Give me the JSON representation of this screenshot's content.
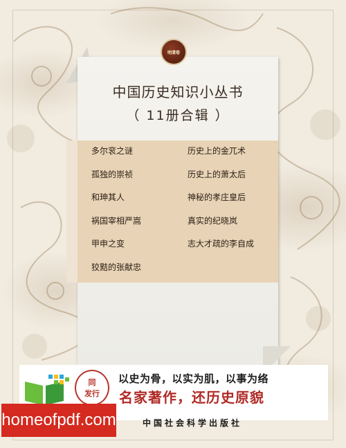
{
  "seal": {
    "text": "明清卷"
  },
  "title": {
    "main": "中国历史知识小丛书",
    "sub": "（ 11册合辑 ）"
  },
  "books_left": [
    "多尔衮之谜",
    "孤独的崇祯",
    "和珅其人",
    "祸国宰相严嵩",
    "甲申之变",
    "狡黠的张献忠"
  ],
  "books_right": [
    "历史上的金兀术",
    "历史上的萧太后",
    "神秘的孝庄皇后",
    "真实的纪晓岚",
    "志大才疏的李自成"
  ],
  "badge": {
    "line1": "同",
    "line2": "发行"
  },
  "slogan": {
    "line1": "以史为骨，以实为肌，以事为络",
    "line2": "名家著作，还历史原貌"
  },
  "publisher": "中国社会科学出版社",
  "watermark": "homeofpdf.com"
}
